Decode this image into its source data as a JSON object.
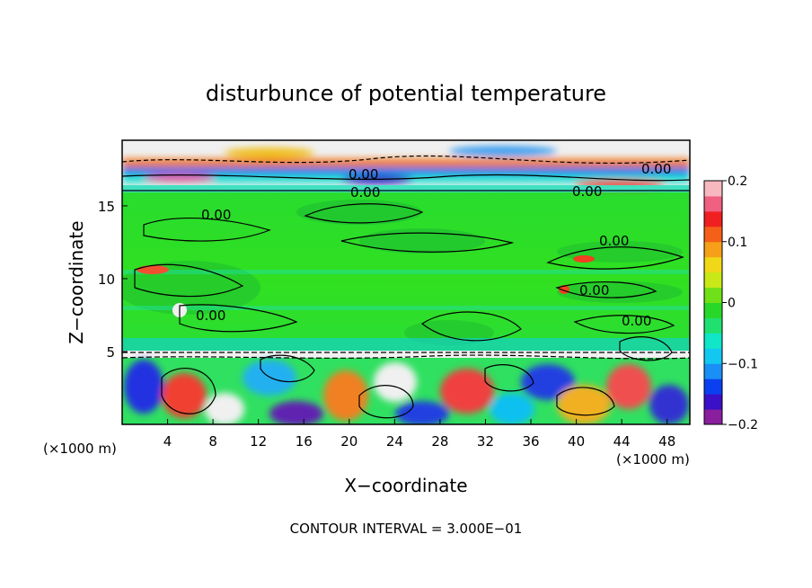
{
  "chart_data": {
    "type": "heatmap",
    "title": "disturbunce of potential temperature",
    "xlabel": "X−coordinate",
    "ylabel": "Z−coordinate",
    "x_unit": "(×1000 m)",
    "y_unit": "(×1000 m)",
    "xlim": [
      0,
      50
    ],
    "ylim": [
      0,
      19.5
    ],
    "x_ticks": [
      "4",
      "8",
      "12",
      "16",
      "20",
      "24",
      "28",
      "32",
      "36",
      "40",
      "44",
      "48"
    ],
    "y_ticks": [
      "5",
      "10",
      "15"
    ],
    "colorbar": {
      "min": -0.2,
      "max": 0.2,
      "tick_labels": [
        "0.2",
        "0.1",
        "0",
        "−0.1",
        "−0.2"
      ],
      "colors": [
        "#8a1f9e",
        "#3a10c8",
        "#0a40f0",
        "#1a8ff5",
        "#12c8f0",
        "#10e6c8",
        "#20e070",
        "#28d828",
        "#70e018",
        "#c8e818",
        "#f0d818",
        "#f5a018",
        "#f56018",
        "#f02020",
        "#f06080",
        "#f8b8c0"
      ]
    },
    "contour_labels": [
      "0.00",
      "0.00",
      "0.00",
      "0.00",
      "0.00",
      "0.00",
      "0.00",
      "0.00",
      "0.00"
    ],
    "bands": [
      {
        "z_from": 0,
        "z_to": 4.8,
        "description": "turbulent boundary layer, strong positive and negative anomalies"
      },
      {
        "z_from": 4.8,
        "z_to": 5.3,
        "description": "inversion, strong negative anomaly (dashed contours)"
      },
      {
        "z_from": 5.3,
        "z_to": 16.5,
        "description": "near-zero disturbance"
      },
      {
        "z_from": 16.5,
        "z_to": 19.5,
        "description": "upper layer, mixed large anomalies"
      }
    ],
    "footer": "CONTOUR INTERVAL = 3.000E−01"
  }
}
